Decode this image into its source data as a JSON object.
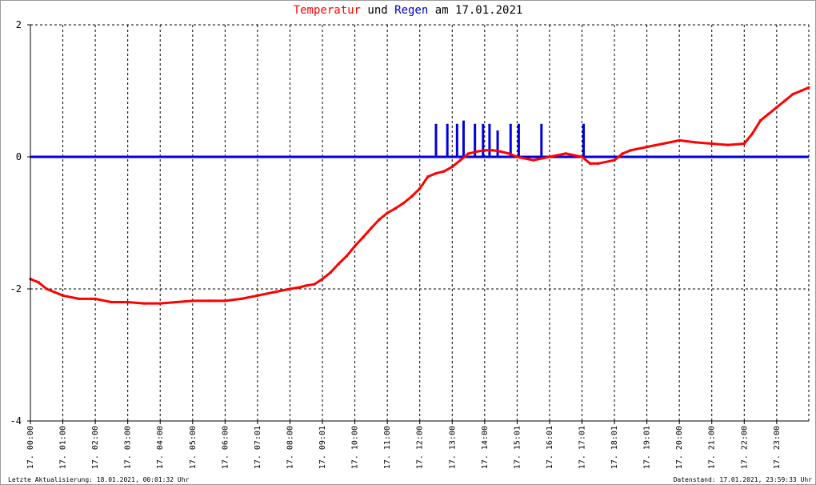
{
  "title": {
    "part1": "Temperatur",
    "part2": " und ",
    "part3": "Regen",
    "part4": " am 17.01.2021",
    "color1": "#ff0000",
    "color3": "#0000cc"
  },
  "footer": {
    "left": "Letzte Aktualisierung: 18.01.2021, 00:01:32 Uhr",
    "right": "Datenstand: 17.01.2021, 23:59:33 Uhr"
  },
  "chart_data": {
    "type": "line",
    "title": "Temperatur und Regen am 17.01.2021",
    "ylim": [
      -4,
      2
    ],
    "yticks": [
      2,
      0,
      -2,
      -4
    ],
    "xlim_hours": [
      0,
      23.99
    ],
    "x_tick_labels": [
      "17. 00:00",
      "17. 01:00",
      "17. 02:00",
      "17. 03:00",
      "17. 04:00",
      "17. 05:00",
      "17. 06:00",
      "17. 07:01",
      "17. 08:00",
      "17. 09:01",
      "17. 10:00",
      "17. 11:00",
      "17. 12:00",
      "17. 13:00",
      "17. 14:00",
      "17. 15:01",
      "17. 16:01",
      "17. 17:01",
      "17. 18:01",
      "17. 19:01",
      "17. 20:00",
      "17. 21:00",
      "17. 22:00",
      "17. 23:00"
    ],
    "grid": true,
    "series": [
      {
        "name": "Temperatur",
        "color": "#ff0000",
        "x_hours": [
          0,
          0.25,
          0.5,
          0.75,
          1,
          1.5,
          2,
          2.5,
          3,
          3.5,
          4,
          4.5,
          5,
          5.5,
          6,
          6.5,
          7,
          7.5,
          8,
          8.25,
          8.5,
          8.75,
          9,
          9.25,
          9.5,
          9.75,
          10,
          10.25,
          10.5,
          10.75,
          11,
          11.25,
          11.5,
          11.75,
          12,
          12.25,
          12.5,
          12.75,
          13,
          13.25,
          13.5,
          13.75,
          14,
          14.25,
          14.5,
          14.75,
          15,
          15.5,
          16,
          16.5,
          17,
          17.25,
          17.5,
          18,
          18.25,
          18.5,
          19,
          19.5,
          20,
          20.5,
          21,
          21.5,
          22,
          22.25,
          22.5,
          22.75,
          23,
          23.25,
          23.5,
          23.75,
          23.99
        ],
        "values": [
          -1.85,
          -1.9,
          -2.0,
          -2.05,
          -2.1,
          -2.15,
          -2.15,
          -2.2,
          -2.2,
          -2.22,
          -2.22,
          -2.2,
          -2.18,
          -2.18,
          -2.18,
          -2.15,
          -2.1,
          -2.05,
          -2.0,
          -1.98,
          -1.95,
          -1.93,
          -1.85,
          -1.75,
          -1.62,
          -1.5,
          -1.35,
          -1.22,
          -1.08,
          -0.95,
          -0.85,
          -0.78,
          -0.7,
          -0.6,
          -0.48,
          -0.3,
          -0.25,
          -0.22,
          -0.15,
          -0.05,
          0.05,
          0.08,
          0.1,
          0.1,
          0.08,
          0.05,
          0.0,
          -0.05,
          0.0,
          0.05,
          0.0,
          -0.1,
          -0.1,
          -0.05,
          0.05,
          0.1,
          0.15,
          0.2,
          0.25,
          0.22,
          0.2,
          0.18,
          0.2,
          0.35,
          0.55,
          0.65,
          0.75,
          0.85,
          0.95,
          1.0,
          1.05
        ]
      },
      {
        "name": "Regen",
        "color": "#0000dd",
        "baseline": 0,
        "spikes_hours": [
          12.5,
          12.85,
          13.15,
          13.35,
          13.7,
          13.95,
          14.15,
          14.4,
          14.8,
          15.05,
          15.75,
          17.05
        ],
        "spikes_values": [
          0.5,
          0.5,
          0.5,
          0.55,
          0.5,
          0.5,
          0.5,
          0.4,
          0.5,
          0.5,
          0.5,
          0.5
        ]
      }
    ]
  }
}
